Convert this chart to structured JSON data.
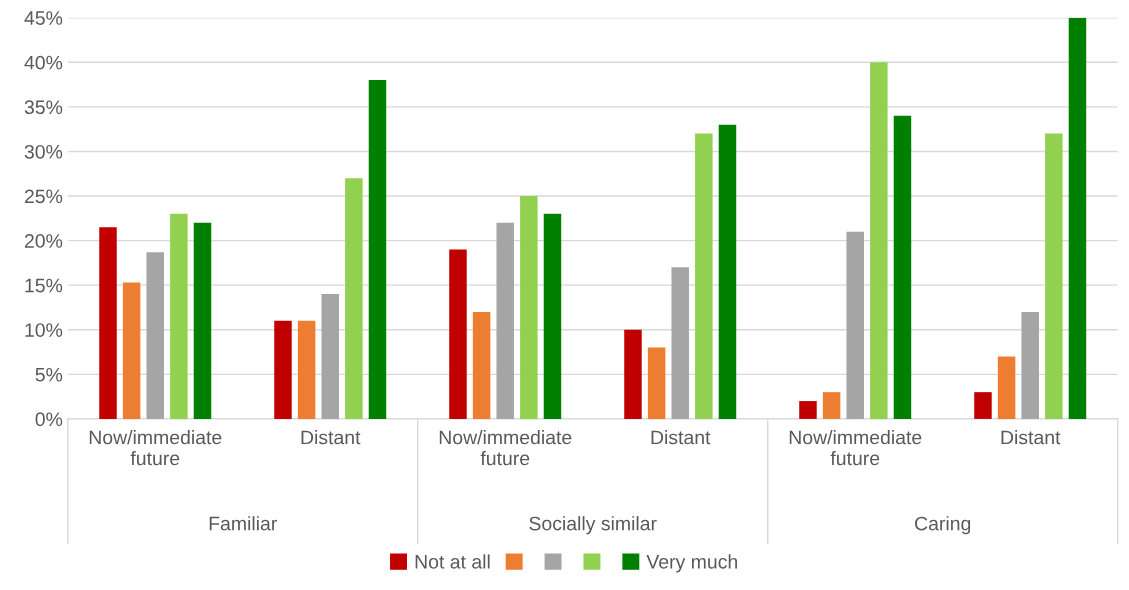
{
  "chart_data": {
    "type": "bar",
    "categories": [
      "Now/immediate future",
      "Distant",
      "Now/immediate future",
      "Distant",
      "Now/immediate future",
      "Distant"
    ],
    "annotations": [
      "Familiar",
      "Socially similar",
      "Caring"
    ],
    "series": [
      {
        "name": "Not at all",
        "color": "#c00000",
        "values": [
          21.5,
          11,
          19,
          10,
          2,
          3
        ]
      },
      {
        "color": "#ed7d31",
        "values": [
          15.3,
          11,
          12,
          8,
          3,
          7
        ]
      },
      {
        "color": "#a5a5a5",
        "values": [
          18.7,
          14,
          22,
          17,
          21,
          12
        ]
      },
      {
        "color": "#92d050",
        "values": [
          23,
          27,
          25,
          32,
          40,
          32
        ]
      },
      {
        "name": "Very much",
        "color": "#008000",
        "values": [
          22,
          38,
          23,
          33,
          34,
          45
        ]
      }
    ],
    "ylim": [
      0,
      45
    ],
    "yticks": [
      {
        "value": 0,
        "label": "0%"
      },
      {
        "value": 5,
        "label": "5%"
      },
      {
        "value": 10,
        "label": "10%"
      },
      {
        "value": 15,
        "label": "15%"
      },
      {
        "value": 20,
        "label": "20%"
      },
      {
        "value": 25,
        "label": "25%"
      },
      {
        "value": 30,
        "label": "30%"
      },
      {
        "value": 35,
        "label": "35%"
      },
      {
        "value": 40,
        "label": "40%"
      },
      {
        "value": 45,
        "label": "45%"
      }
    ],
    "grid": "y",
    "legend": "bottom"
  }
}
